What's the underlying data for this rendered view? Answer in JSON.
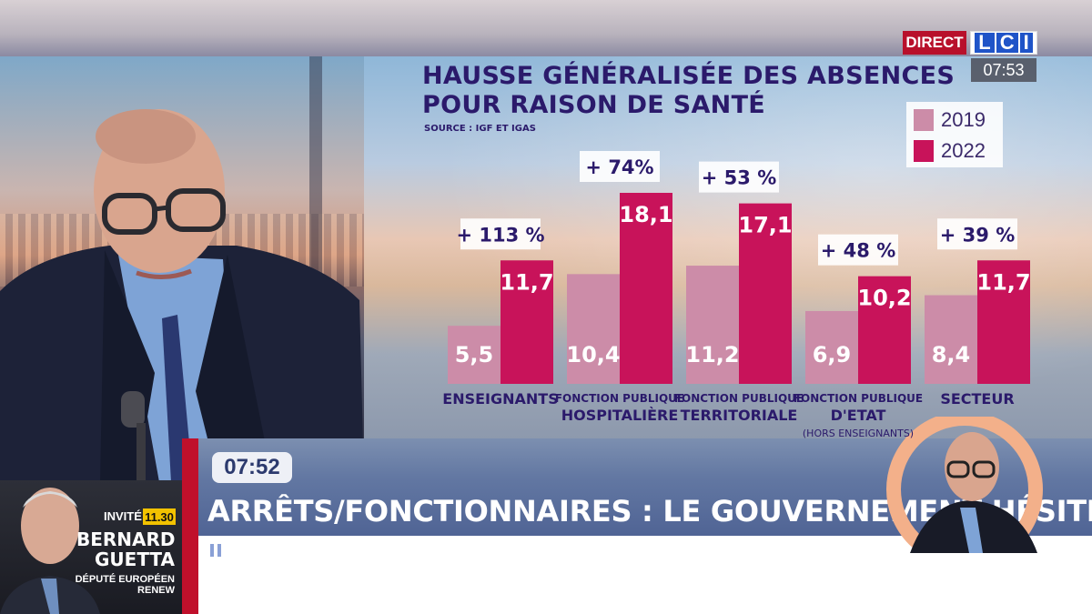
{
  "channel": {
    "live_label": "DIRECT",
    "logo_letters": [
      "L",
      "C",
      "I"
    ],
    "clock": "07:53"
  },
  "chart": {
    "title_line1": "HAUSSE GÉNÉRALISÉE DES ABSENCES",
    "title_line2": "POUR RAISON DE SANTÉ",
    "source": "SOURCE : IGF ET IGAS",
    "legend": [
      {
        "label": "2019",
        "color": "#cc8ca8"
      },
      {
        "label": "2022",
        "color": "#c8135a"
      }
    ]
  },
  "chart_data": {
    "type": "bar",
    "title": "HAUSSE GÉNÉRALISÉE DES ABSENCES POUR RAISON DE SANTÉ",
    "categories": [
      {
        "line1": "ENSEIGNANTS",
        "line2": "",
        "line3": ""
      },
      {
        "line1": "FONCTION PUBLIQUE",
        "line2": "HOSPITALIÈRE",
        "line3": ""
      },
      {
        "line1": "FONCTION PUBLIQUE",
        "line2": "TERRITORIALE",
        "line3": ""
      },
      {
        "line1": "FONCTION PUBLIQUE",
        "line2": "D'ETAT",
        "line3": "(HORS ENSEIGNANTS)"
      },
      {
        "line1": "SECTEUR",
        "line2": "",
        "line3": ""
      }
    ],
    "series": [
      {
        "name": "2019",
        "color": "#cc8ca8",
        "values": [
          5.5,
          10.4,
          11.2,
          6.9,
          8.4
        ],
        "labels": [
          "5,5",
          "10,4",
          "11,2",
          "6,9",
          "8,4"
        ]
      },
      {
        "name": "2022",
        "color": "#c8135a",
        "values": [
          11.7,
          18.1,
          17.1,
          10.2,
          11.7
        ],
        "labels": [
          "11,7",
          "18,1",
          "17,1",
          "10,2",
          "11,7"
        ]
      }
    ],
    "changes": [
      "+ 113 %",
      "+ 74%",
      "+ 53 %",
      "+ 48 %",
      "+ 39 %"
    ],
    "ylim": [
      0,
      18.1
    ],
    "grid": false,
    "legend_position": "top-right"
  },
  "lower_third": {
    "time": "07:52",
    "headline": "ARRÊTS/FONCTIONNAIRES : LE GOUVERNEMENT HÉSITE"
  },
  "guest": {
    "invite_label": "INVITÉ",
    "invite_time": "11.30",
    "name_line1": "BERNARD",
    "name_line2": "GUETTA",
    "role": "DÉPUTÉ EUROPÉEN RENEW"
  }
}
